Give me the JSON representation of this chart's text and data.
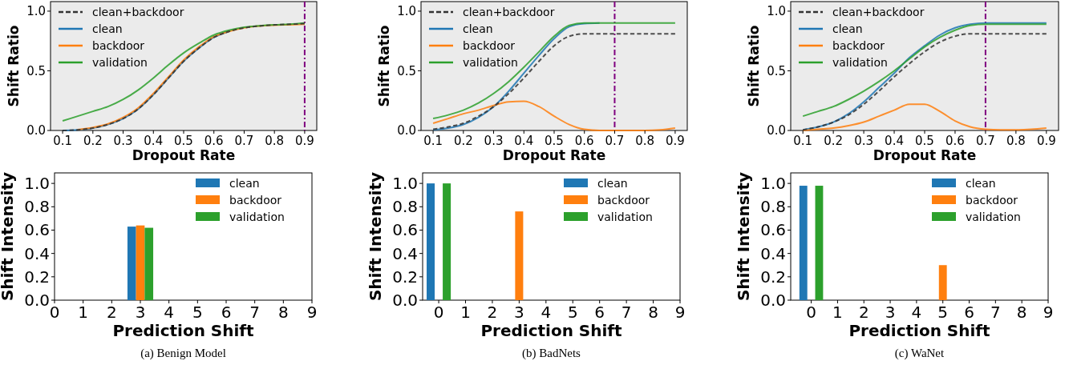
{
  "chart_data": [
    {
      "type": "line",
      "xlabel": "Dropout Rate",
      "ylabel": "Shift Ratio",
      "xlim": [
        0.06,
        0.94
      ],
      "ylim": [
        0,
        1.08
      ],
      "xticks": [
        0.1,
        0.2,
        0.3,
        0.4,
        0.5,
        0.6,
        0.7,
        0.8,
        0.9
      ],
      "yticks": [
        {
          "value": 0,
          "label": "0.0"
        },
        {
          "value": 0.5,
          "label": "0.5"
        },
        {
          "value": 1,
          "label": "1.0"
        }
      ],
      "legend": "top left",
      "grid": false,
      "x": [
        0.1,
        0.15,
        0.2,
        0.25,
        0.3,
        0.35,
        0.4,
        0.45,
        0.5,
        0.55,
        0.6,
        0.65,
        0.7,
        0.75,
        0.8,
        0.85,
        0.9
      ],
      "series": [
        {
          "name": "clean+backdoor",
          "color": "#333333",
          "line_style": "dashed",
          "values": [
            0,
            0.005,
            0.02,
            0.05,
            0.1,
            0.18,
            0.3,
            0.44,
            0.58,
            0.69,
            0.78,
            0.83,
            0.86,
            0.875,
            0.885,
            0.89,
            0.895
          ]
        },
        {
          "name": "clean",
          "color": "#1f77b4",
          "values": [
            0,
            0.005,
            0.02,
            0.05,
            0.1,
            0.18,
            0.3,
            0.44,
            0.58,
            0.69,
            0.78,
            0.83,
            null,
            null,
            null,
            null,
            null
          ]
        },
        {
          "name": "backdoor",
          "color": "#ff7f0e",
          "values": [
            null,
            0.006,
            0.025,
            0.055,
            0.11,
            0.19,
            0.31,
            0.45,
            0.59,
            0.7,
            0.785,
            0.83,
            0.86,
            0.875,
            0.882,
            0.886,
            0.89
          ]
        },
        {
          "name": "validation",
          "color": "#2ca02c",
          "values": [
            0.08,
            0.12,
            0.16,
            0.2,
            0.26,
            0.34,
            0.44,
            0.55,
            0.65,
            0.73,
            0.8,
            0.84,
            0.865,
            0.877,
            0.885,
            0.89,
            0.9
          ]
        }
      ],
      "ref_lines": [
        {
          "axis": "x",
          "value": 0.9,
          "color": "#800080",
          "line_style": "dashed"
        }
      ]
    },
    {
      "type": "line",
      "xlabel": "Dropout Rate",
      "ylabel": "Shift Ratio",
      "xlim": [
        0.06,
        0.94
      ],
      "ylim": [
        0,
        1.08
      ],
      "xticks": [
        0.1,
        0.2,
        0.3,
        0.4,
        0.5,
        0.6,
        0.7,
        0.8,
        0.9
      ],
      "yticks": [
        {
          "value": 0,
          "label": "0.0"
        },
        {
          "value": 0.5,
          "label": "0.5"
        },
        {
          "value": 1,
          "label": "1.0"
        }
      ],
      "legend": "top left",
      "grid": false,
      "x": [
        0.1,
        0.15,
        0.2,
        0.25,
        0.3,
        0.35,
        0.4,
        0.45,
        0.5,
        0.55,
        0.6,
        0.65,
        0.7,
        0.75,
        0.8,
        0.85,
        0.9
      ],
      "series": [
        {
          "name": "clean+backdoor",
          "color": "#333333",
          "line_style": "dashed",
          "values": [
            0.01,
            0.03,
            0.06,
            0.12,
            0.2,
            0.31,
            0.44,
            0.58,
            0.71,
            0.79,
            0.81,
            0.81,
            0.81,
            0.81,
            0.81,
            0.81,
            0.81
          ]
        },
        {
          "name": "clean",
          "color": "#1f77b4",
          "values": [
            0.005,
            0.02,
            0.05,
            0.11,
            0.2,
            0.33,
            0.48,
            0.63,
            0.77,
            0.87,
            0.895,
            0.9,
            null,
            null,
            null,
            null,
            null
          ]
        },
        {
          "name": "backdoor",
          "color": "#ff7f0e",
          "values": [
            0.06,
            0.1,
            0.14,
            0.17,
            0.21,
            0.24,
            0.245,
            0.2,
            0.12,
            0.05,
            0.01,
            0,
            0,
            0,
            0,
            0.005,
            0.02
          ]
        },
        {
          "name": "validation",
          "color": "#2ca02c",
          "values": [
            0.1,
            0.13,
            0.17,
            0.23,
            0.31,
            0.41,
            0.53,
            0.66,
            0.79,
            0.88,
            0.9,
            0.9,
            0.9,
            0.9,
            0.9,
            0.9,
            0.9
          ]
        }
      ],
      "ref_lines": [
        {
          "axis": "x",
          "value": 0.7,
          "color": "#800080",
          "line_style": "dashed"
        }
      ]
    },
    {
      "type": "line",
      "xlabel": "Dropout Rate",
      "ylabel": "Shift Ratio",
      "xlim": [
        0.06,
        0.94
      ],
      "ylim": [
        0,
        1.08
      ],
      "xticks": [
        0.1,
        0.2,
        0.3,
        0.4,
        0.5,
        0.6,
        0.7,
        0.8,
        0.9
      ],
      "yticks": [
        {
          "value": 0,
          "label": "0.0"
        },
        {
          "value": 0.5,
          "label": "0.5"
        },
        {
          "value": 1,
          "label": "1.0"
        }
      ],
      "legend": "top left",
      "grid": false,
      "x": [
        0.1,
        0.15,
        0.2,
        0.25,
        0.3,
        0.35,
        0.4,
        0.45,
        0.5,
        0.55,
        0.6,
        0.65,
        0.7,
        0.75,
        0.8,
        0.85,
        0.9
      ],
      "series": [
        {
          "name": "clean+backdoor",
          "color": "#333333",
          "line_style": "dashed",
          "values": [
            0.005,
            0.03,
            0.07,
            0.13,
            0.22,
            0.33,
            0.45,
            0.56,
            0.66,
            0.74,
            0.79,
            0.81,
            0.81,
            0.81,
            0.81,
            0.81,
            0.81
          ]
        },
        {
          "name": "clean",
          "color": "#1f77b4",
          "values": [
            0.005,
            0.03,
            0.07,
            0.14,
            0.24,
            0.36,
            0.48,
            0.61,
            0.71,
            0.8,
            0.86,
            0.89,
            0.9,
            0.9,
            0.9,
            0.9,
            0.9
          ]
        },
        {
          "name": "backdoor",
          "color": "#ff7f0e",
          "values": [
            0,
            0.01,
            0.02,
            0.04,
            0.07,
            0.12,
            0.17,
            0.22,
            0.22,
            0.16,
            0.08,
            0.03,
            0.01,
            0.005,
            0.005,
            0.01,
            0.02
          ]
        },
        {
          "name": "validation",
          "color": "#2ca02c",
          "values": [
            0.12,
            0.16,
            0.2,
            0.26,
            0.33,
            0.41,
            0.5,
            0.6,
            0.7,
            0.78,
            0.84,
            0.88,
            0.89,
            0.89,
            0.89,
            0.89,
            0.89
          ]
        }
      ],
      "ref_lines": [
        {
          "axis": "x",
          "value": 0.7,
          "color": "#800080",
          "line_style": "dashed"
        }
      ]
    },
    {
      "type": "bar",
      "xlabel": "Prediction Shift",
      "ylabel": "Shift Intensity",
      "xlim": [
        0,
        9
      ],
      "ylim": [
        0,
        1.09
      ],
      "xticks": [
        0,
        1,
        2,
        3,
        4,
        5,
        6,
        7,
        8,
        9
      ],
      "yticks": [
        {
          "value": 0,
          "label": "0.0"
        },
        {
          "value": 0.2,
          "label": "0.2"
        },
        {
          "value": 0.4,
          "label": "0.4"
        },
        {
          "value": 0.6,
          "label": "0.6"
        },
        {
          "value": 0.8,
          "label": "0.8"
        },
        {
          "value": 1,
          "label": "1.0"
        }
      ],
      "legend": "top right",
      "grid": false,
      "series": [
        {
          "name": "clean",
          "color": "#1f77b4",
          "x": [
            2.7
          ],
          "values": [
            0.63
          ]
        },
        {
          "name": "backdoor",
          "color": "#ff7f0e",
          "x": [
            3
          ],
          "values": [
            0.64
          ]
        },
        {
          "name": "validation",
          "color": "#2ca02c",
          "x": [
            3.3
          ],
          "values": [
            0.62
          ]
        }
      ],
      "annotations": [
        "(a) Benign Model"
      ]
    },
    {
      "type": "bar",
      "xlabel": "Prediction Shift",
      "ylabel": "Shift Intensity",
      "xlim": [
        -0.6,
        9
      ],
      "ylim": [
        0,
        1.09
      ],
      "xticks": [
        0,
        1,
        2,
        3,
        4,
        5,
        6,
        7,
        8,
        9
      ],
      "yticks": [
        {
          "value": 0,
          "label": "0.0"
        },
        {
          "value": 0.2,
          "label": "0.2"
        },
        {
          "value": 0.4,
          "label": "0.4"
        },
        {
          "value": 0.6,
          "label": "0.6"
        },
        {
          "value": 0.8,
          "label": "0.8"
        },
        {
          "value": 1,
          "label": "1.0"
        }
      ],
      "legend": "top right",
      "grid": false,
      "series": [
        {
          "name": "clean",
          "color": "#1f77b4",
          "x": [
            -0.3
          ],
          "values": [
            1.0
          ]
        },
        {
          "name": "backdoor",
          "color": "#ff7f0e",
          "x": [
            3
          ],
          "values": [
            0.76
          ]
        },
        {
          "name": "validation",
          "color": "#2ca02c",
          "x": [
            0.3
          ],
          "values": [
            1.0
          ]
        }
      ],
      "annotations": [
        "(b) BadNets"
      ]
    },
    {
      "type": "bar",
      "xlabel": "Prediction Shift",
      "ylabel": "Shift Intensity",
      "xlim": [
        -0.78,
        9
      ],
      "ylim": [
        0,
        1.09
      ],
      "xticks": [
        0,
        1,
        2,
        3,
        4,
        5,
        6,
        7,
        8,
        9
      ],
      "yticks": [
        {
          "value": 0,
          "label": "0.0"
        },
        {
          "value": 0.2,
          "label": "0.2"
        },
        {
          "value": 0.4,
          "label": "0.4"
        },
        {
          "value": 0.6,
          "label": "0.6"
        },
        {
          "value": 0.8,
          "label": "0.8"
        },
        {
          "value": 1,
          "label": "1.0"
        }
      ],
      "legend": "top right",
      "grid": false,
      "series": [
        {
          "name": "clean",
          "color": "#1f77b4",
          "x": [
            -0.3
          ],
          "values": [
            0.98
          ]
        },
        {
          "name": "backdoor",
          "color": "#ff7f0e",
          "x": [
            5
          ],
          "values": [
            0.3
          ]
        },
        {
          "name": "validation",
          "color": "#2ca02c",
          "x": [
            0.3
          ],
          "values": [
            0.98
          ]
        }
      ],
      "annotations": [
        "(c) WaNet"
      ]
    }
  ]
}
